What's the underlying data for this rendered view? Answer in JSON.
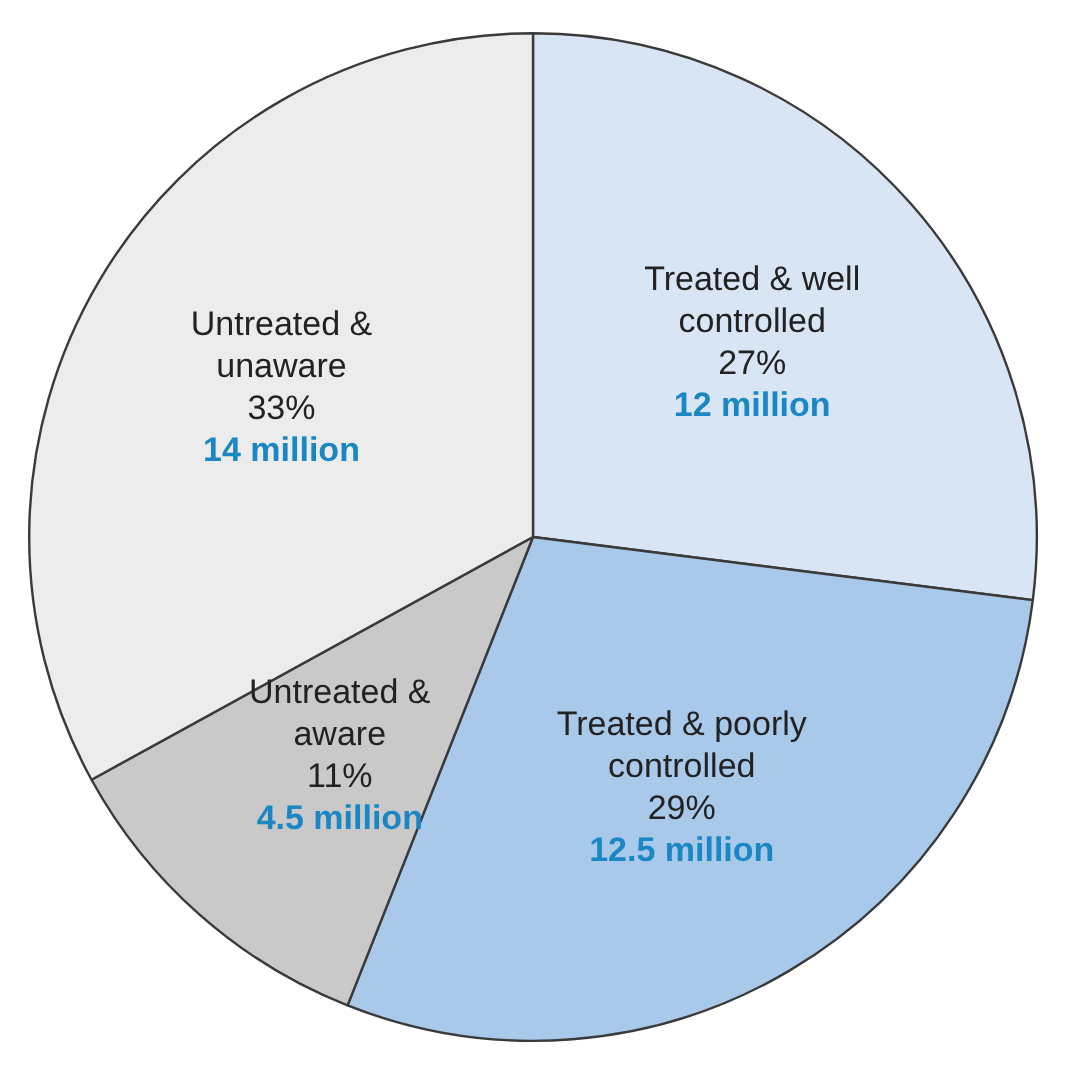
{
  "chart_data": {
    "type": "pie",
    "categories": [
      "Treated & well controlled",
      "Treated & poorly controlled",
      "Untreated & aware",
      "Untreated & unaware"
    ],
    "values": [
      27,
      29,
      11,
      33
    ],
    "colors": [
      "#d7e5f5",
      "#a9c9eb",
      "#c9c9c9",
      "#ececec"
    ],
    "value_labels": [
      "27%",
      "29%",
      "11%",
      "33%"
    ],
    "annotations": [
      {
        "text": "12 million",
        "x": "Treated & well controlled"
      },
      {
        "text": "12.5 million",
        "x": "Treated & poorly controlled"
      },
      {
        "text": "4.5 million",
        "x": "Untreated & aware"
      },
      {
        "text": "14 million",
        "x": "Untreated & unaware"
      }
    ],
    "legend": false
  }
}
